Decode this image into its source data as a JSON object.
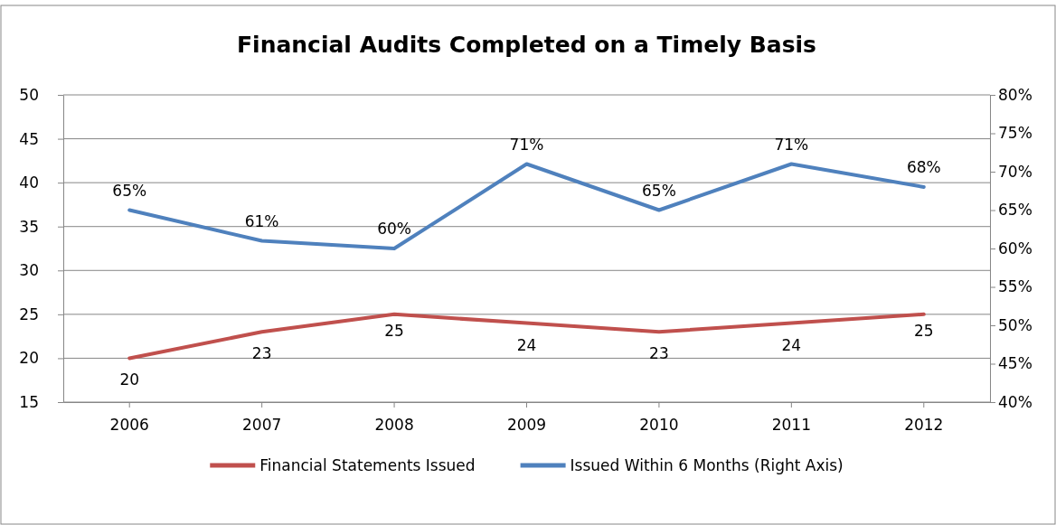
{
  "chart_data": {
    "type": "line",
    "title": "Financial Audits Completed on a Timely Basis",
    "categories": [
      "2006",
      "2007",
      "2008",
      "2009",
      "2010",
      "2011",
      "2012"
    ],
    "series": [
      {
        "name": "Financial Statements Issued",
        "color": "#c0504d",
        "values": [
          20,
          23,
          25,
          24,
          23,
          24,
          25
        ],
        "value_labels": [
          "20",
          "23",
          "25",
          "24",
          "23",
          "24",
          "25"
        ]
      },
      {
        "name": "Issued Within 6 Months (Right Axis)",
        "color": "#4f81bd",
        "axis": "y2",
        "values": [
          65,
          61,
          60,
          71,
          65,
          71,
          68
        ],
        "value_labels": [
          "65%",
          "61%",
          "60%",
          "71%",
          "65%",
          "71%",
          "68%"
        ]
      }
    ],
    "ylim": [
      15,
      50
    ],
    "yticks": [
      15,
      20,
      25,
      30,
      35,
      40,
      45,
      50
    ],
    "y2lim": [
      40,
      80
    ],
    "y2ticks": [
      {
        "value": 40,
        "label": "40%"
      },
      {
        "value": 45,
        "label": "45%"
      },
      {
        "value": 50,
        "label": "50%"
      },
      {
        "value": 55,
        "label": "55%"
      },
      {
        "value": 60,
        "label": "60%"
      },
      {
        "value": 65,
        "label": "65%"
      },
      {
        "value": 70,
        "label": "70%"
      },
      {
        "value": 75,
        "label": "75%"
      },
      {
        "value": 80,
        "label": "80%"
      }
    ],
    "grid": "y",
    "legend": "bottom",
    "marker": "none",
    "line_style": "solid"
  }
}
